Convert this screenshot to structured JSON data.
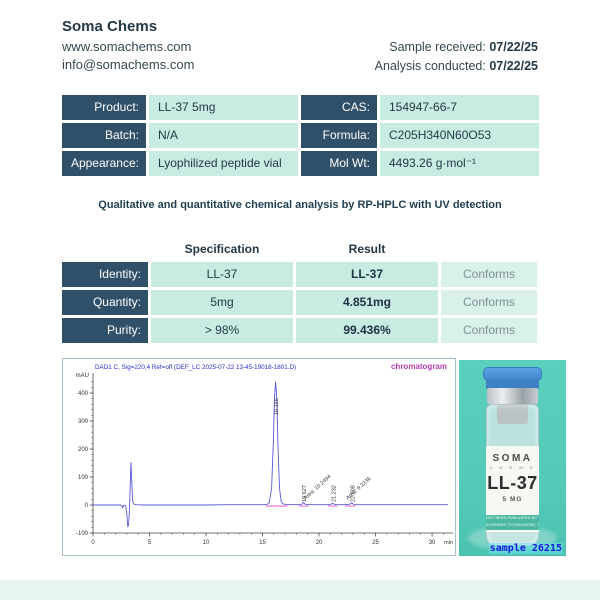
{
  "header": {
    "company": "Soma Chems",
    "website": "www.somachems.com",
    "email": "info@somachems.com",
    "received_label": "Sample received: ",
    "received_date": "07/22/25",
    "conducted_label": "Analysis conducted: ",
    "conducted_date": "07/22/25"
  },
  "product_info": {
    "rows": [
      {
        "label": "Product:",
        "value": "LL-37 5mg",
        "label2": "CAS:",
        "value2": "154947-66-7"
      },
      {
        "label": "Batch:",
        "value": "N/A",
        "label2": "Formula:",
        "value2": "C205H340N60O53"
      },
      {
        "label": "Appearance:",
        "value": "Lyophilized peptide vial",
        "label2": "Mol Wt:",
        "value2": "4493.26 g·mol⁻¹"
      }
    ]
  },
  "method_line": "Qualitative and quantitative chemical analysis by RP-HPLC with UV detection",
  "analysis": {
    "col_headers": [
      "Specification",
      "Result"
    ],
    "rows": [
      {
        "label": "Identity:",
        "spec": "LL-37",
        "result": "LL-37",
        "status": "Conforms"
      },
      {
        "label": "Quantity:",
        "spec": "5mg",
        "result": "4.851mg",
        "status": "Conforms"
      },
      {
        "label": "Purity:",
        "spec": "> 98%",
        "result": "99.436%",
        "status": "Conforms"
      }
    ]
  },
  "colors": {
    "dark_cell": "#2f5068",
    "mint_cell": "#c9ece2",
    "status_cell": "#d9f1e8",
    "trace_blue": "#5a5ad8",
    "magenta": "#e04fd0",
    "vial_teal": "#54cab8"
  },
  "chart_data": {
    "type": "line",
    "title": "DAD1 C, Sig=220,4 Ref=off (DEF_LC 2025-07-22 13-45-19018-1801.D)",
    "corner_label": "chromatogram",
    "ylabel": "mAU",
    "xlabel": "min",
    "xlim": [
      0,
      31.5
    ],
    "ylim": [
      -100,
      450
    ],
    "yticks": [
      -100,
      0,
      100,
      200,
      300,
      400
    ],
    "xticks": [
      0,
      5,
      10,
      15,
      20,
      25,
      30
    ],
    "grid": false,
    "trace": [
      [
        0,
        0
      ],
      [
        1,
        0
      ],
      [
        2,
        0
      ],
      [
        2.45,
        0
      ],
      [
        2.55,
        -2
      ],
      [
        2.62,
        -10
      ],
      [
        2.7,
        -2
      ],
      [
        2.8,
        -1
      ],
      [
        2.9,
        -4
      ],
      [
        3.0,
        -35
      ],
      [
        3.08,
        -78
      ],
      [
        3.15,
        -70
      ],
      [
        3.22,
        -20
      ],
      [
        3.3,
        80
      ],
      [
        3.36,
        152
      ],
      [
        3.42,
        90
      ],
      [
        3.5,
        15
      ],
      [
        3.6,
        4
      ],
      [
        3.8,
        1
      ],
      [
        4.5,
        0
      ],
      [
        6,
        0
      ],
      [
        8,
        0
      ],
      [
        10,
        0
      ],
      [
        12,
        1
      ],
      [
        14,
        1
      ],
      [
        15,
        1
      ],
      [
        15.4,
        2
      ],
      [
        15.6,
        8
      ],
      [
        15.8,
        60
      ],
      [
        15.95,
        220
      ],
      [
        16.05,
        380
      ],
      [
        16.155,
        440
      ],
      [
        16.26,
        380
      ],
      [
        16.36,
        220
      ],
      [
        16.5,
        60
      ],
      [
        16.65,
        12
      ],
      [
        16.8,
        4
      ],
      [
        17.1,
        2
      ],
      [
        18,
        1
      ],
      [
        18.45,
        2
      ],
      [
        18.627,
        9
      ],
      [
        18.8,
        2
      ],
      [
        19.5,
        1
      ],
      [
        20.9,
        1
      ],
      [
        21.1,
        4
      ],
      [
        21.232,
        6
      ],
      [
        21.4,
        1
      ],
      [
        22.3,
        1
      ],
      [
        22.7,
        3
      ],
      [
        22.908,
        7
      ],
      [
        23.1,
        1
      ],
      [
        24,
        1
      ],
      [
        26,
        1
      ],
      [
        28,
        1
      ],
      [
        30,
        1
      ],
      [
        31.4,
        1
      ]
    ],
    "peaks": [
      {
        "rt": 16.155,
        "label": "16.155",
        "label_top": 56
      },
      {
        "rt": 18.627,
        "label": "18.627",
        "label_top": 143
      },
      {
        "rt": 21.232,
        "label": "21.232",
        "label_top": 143
      },
      {
        "rt": 22.908,
        "label": "22.908",
        "label_top": 143
      }
    ],
    "area_labels": [
      {
        "x": 18.8,
        "text": "Area: 10.2494"
      },
      {
        "x": 22.55,
        "text": "Area: 9.2236"
      }
    ],
    "integration_segments": [
      [
        15.3,
        17.2
      ],
      [
        18.2,
        19.1
      ],
      [
        20.8,
        21.6
      ],
      [
        22.3,
        23.2
      ]
    ]
  },
  "vial": {
    "brand": "SOMA",
    "brand_sub": "C H E M S",
    "product": "LL-37",
    "dose": "5 MG",
    "disclaimer1": "NOT BEEN EVALUATED BY THE FOOD AND DRUG",
    "disclaimer2": "INTENDED TO DIAGNOSE, TREAT, CURE, OR PREVENT",
    "caption": "sample 26215"
  }
}
